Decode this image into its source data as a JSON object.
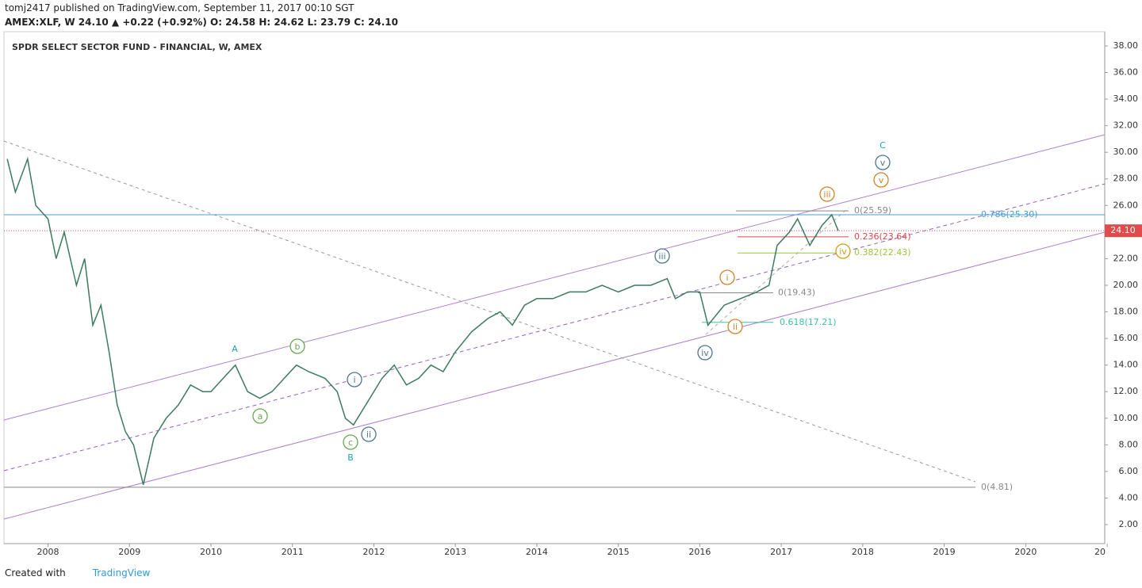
{
  "header": {
    "line1": "tomj2417 published on TradingView.com, September 11, 2017 00:10 SGT",
    "line2": "AMEX:XLF, W  24.10 ▲ +0.22 (+0.92%) O: 24.58 H: 24.62 L: 23.79 C: 24.10"
  },
  "footer": {
    "created": "Created with",
    "brand": "TradingView"
  },
  "chart_data": {
    "type": "line",
    "title": "SPDR SELECT SECTOR FUND - FINANCIAL, W, AMEX",
    "color": "#3d7a5e",
    "x": [
      2007.5,
      2007.6,
      2007.75,
      2007.85,
      2008.0,
      2008.1,
      2008.2,
      2008.35,
      2008.45,
      2008.55,
      2008.65,
      2008.75,
      2008.85,
      2008.95,
      2009.05,
      2009.17,
      2009.3,
      2009.45,
      2009.6,
      2009.75,
      2009.9,
      2010.0,
      2010.15,
      2010.3,
      2010.45,
      2010.6,
      2010.75,
      2010.9,
      2011.05,
      2011.2,
      2011.4,
      2011.55,
      2011.65,
      2011.75,
      2011.9,
      2012.1,
      2012.25,
      2012.4,
      2012.55,
      2012.7,
      2012.85,
      2013.0,
      2013.2,
      2013.4,
      2013.55,
      2013.7,
      2013.85,
      2014.0,
      2014.2,
      2014.4,
      2014.6,
      2014.8,
      2015.0,
      2015.2,
      2015.4,
      2015.6,
      2015.7,
      2015.85,
      2016.0,
      2016.1,
      2016.3,
      2016.5,
      2016.7,
      2016.85,
      2016.95,
      2017.1,
      2017.2,
      2017.35,
      2017.5,
      2017.62,
      2017.7
    ],
    "values": [
      29.5,
      27,
      29.5,
      26,
      25,
      22,
      24,
      20,
      22,
      17,
      18.5,
      15,
      11,
      9,
      8,
      5,
      8.5,
      10,
      11,
      12.5,
      12,
      12,
      13,
      14,
      12,
      11.5,
      12,
      13,
      14,
      13.5,
      13,
      12,
      10,
      9.5,
      11,
      13,
      14,
      12.5,
      13,
      14,
      13.5,
      15,
      16.5,
      17.5,
      18,
      17,
      18.5,
      19,
      19,
      19.5,
      19.5,
      20,
      19.5,
      20,
      20,
      20.5,
      19,
      19.5,
      19.5,
      17,
      18.5,
      19,
      19.5,
      20,
      23,
      24,
      25,
      23,
      24.5,
      25.3,
      24.1
    ],
    "xlim": [
      2007.46,
      2020.97
    ],
    "xticks": [
      2008,
      2009,
      2010,
      2011,
      2012,
      2013,
      2014,
      2015,
      2016,
      2017,
      2018,
      2019,
      2020,
      {
        "value": 2021,
        "label": "20"
      }
    ],
    "ylim": [
      0.57,
      39.07
    ],
    "yticks": [
      {
        "value": 2,
        "label": "2.00"
      },
      {
        "value": 4,
        "label": "4.00"
      },
      {
        "value": 6,
        "label": "6.00"
      },
      {
        "value": 8,
        "label": "8.00"
      },
      {
        "value": 10,
        "label": "10.00"
      },
      {
        "value": 12,
        "label": "12.00"
      },
      {
        "value": 14,
        "label": "14.00"
      },
      {
        "value": 16,
        "label": "16.00"
      },
      {
        "value": 18,
        "label": "18.00"
      },
      {
        "value": 20,
        "label": "20.00"
      },
      {
        "value": 22,
        "label": "22.00"
      },
      {
        "value": 24,
        "label": "24.00"
      },
      {
        "value": 26,
        "label": "26.00"
      },
      {
        "value": 28,
        "label": "28.00"
      },
      {
        "value": 30,
        "label": "30.00"
      },
      {
        "value": 32,
        "label": "32.00"
      },
      {
        "value": 34,
        "label": "34.00"
      },
      {
        "value": 36,
        "label": "36.00"
      },
      {
        "value": 38,
        "label": "38.00"
      }
    ],
    "last_price": {
      "value": 24.1,
      "label": "24.10",
      "color": "#e04b4b"
    },
    "levels": [
      {
        "value": 25.59,
        "label": "0(25.59)",
        "color": "#888888"
      },
      {
        "value": 25.3,
        "label": "0.786(25.30)",
        "color": "#4a9fd0"
      },
      {
        "value": 23.64,
        "label": "0.236(23.64)",
        "color": "#d9484f"
      },
      {
        "value": 22.43,
        "label": "0.382(22.43)",
        "color": "#9bc53d"
      },
      {
        "value": 19.43,
        "label": "0(19.43)",
        "color": "#888888"
      },
      {
        "value": 17.21,
        "label": "0.618(17.21)",
        "color": "#3cc0a5"
      },
      {
        "value": 4.81,
        "label": "0(4.81)",
        "color": "#888888"
      }
    ],
    "waves": [
      {
        "label": "A",
        "color": "#1ba3b5",
        "circled": false
      },
      {
        "label": "B",
        "color": "#1ba3b5",
        "circled": false
      },
      {
        "label": "C",
        "color": "#1ba3b5",
        "circled": false
      },
      {
        "label": "a",
        "color": "#6aa84f",
        "circled": true
      },
      {
        "label": "b",
        "color": "#6aa84f",
        "circled": true
      },
      {
        "label": "c",
        "color": "#6aa84f",
        "circled": true
      },
      {
        "label": "i",
        "color": "#4f7590",
        "circled": true
      },
      {
        "label": "ii",
        "color": "#4f7590",
        "circled": true
      },
      {
        "label": "iii",
        "color": "#4f7590",
        "circled": true
      },
      {
        "label": "iv",
        "color": "#4f7590",
        "circled": true
      },
      {
        "label": "v",
        "color": "#4f7590",
        "circled": true
      },
      {
        "label": "i",
        "color": "#d4822a",
        "circled": true
      },
      {
        "label": "ii",
        "color": "#d4822a",
        "circled": true
      },
      {
        "label": "iii",
        "color": "#d4822a",
        "circled": true
      },
      {
        "label": "iv",
        "color": "#c9a018",
        "circled": true
      },
      {
        "label": "v",
        "color": "#d4822a",
        "circled": true
      }
    ]
  }
}
